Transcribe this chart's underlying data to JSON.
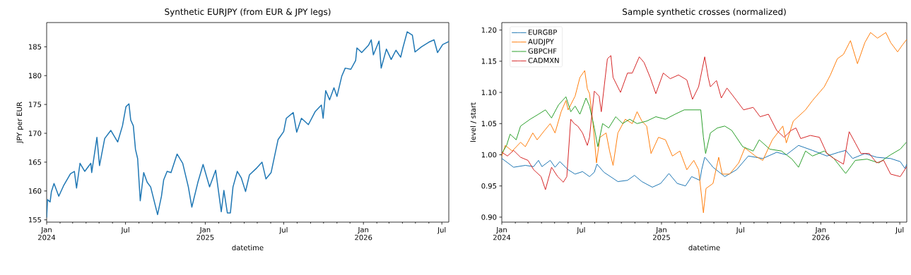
{
  "chart_data": [
    {
      "type": "line",
      "title": "Synthetic EURJPY (from EUR & JPY legs)",
      "xlabel": "datetime",
      "ylabel": "JPY per EUR",
      "xlim": [
        "2024-01-01",
        "2026-07-17"
      ],
      "ylim": [
        154.6,
        189.2
      ],
      "xticks": [
        {
          "value": "2024-01",
          "label": "Jan 2024"
        },
        {
          "value": "2024-02",
          "label": null
        },
        {
          "value": "2024-03",
          "label": null
        },
        {
          "value": "2024-04",
          "label": null
        },
        {
          "value": "2024-05",
          "label": null
        },
        {
          "value": "2024-06",
          "label": null
        },
        {
          "value": "2024-07",
          "label": "Jul"
        },
        {
          "value": "2024-08",
          "label": null
        },
        {
          "value": "2024-09",
          "label": null
        },
        {
          "value": "2024-10",
          "label": null
        },
        {
          "value": "2024-11",
          "label": null
        },
        {
          "value": "2024-12",
          "label": null
        },
        {
          "value": "2025-01",
          "label": "Jan 2025"
        },
        {
          "value": "2025-02",
          "label": null
        },
        {
          "value": "2025-03",
          "label": null
        },
        {
          "value": "2025-04",
          "label": null
        },
        {
          "value": "2025-05",
          "label": null
        },
        {
          "value": "2025-06",
          "label": null
        },
        {
          "value": "2025-07",
          "label": "Jul"
        },
        {
          "value": "2025-08",
          "label": null
        },
        {
          "value": "2025-09",
          "label": null
        },
        {
          "value": "2025-10",
          "label": null
        },
        {
          "value": "2025-11",
          "label": null
        },
        {
          "value": "2025-12",
          "label": null
        },
        {
          "value": "2026-01",
          "label": "Jan 2026"
        },
        {
          "value": "2026-02",
          "label": null
        },
        {
          "value": "2026-03",
          "label": null
        },
        {
          "value": "2026-04",
          "label": null
        },
        {
          "value": "2026-05",
          "label": null
        },
        {
          "value": "2026-06",
          "label": null
        },
        {
          "value": "2026-07",
          "label": "Jul"
        }
      ],
      "yticks": [
        155,
        160,
        165,
        170,
        175,
        180,
        185
      ],
      "series": [
        {
          "color": "#1f77b4",
          "x": [
            "2024-01-01",
            "2024-01-03",
            "2024-01-09",
            "2024-01-12",
            "2024-01-18",
            "2024-01-29",
            "2024-02-09",
            "2024-02-25",
            "2024-03-05",
            "2024-03-10",
            "2024-03-18",
            "2024-03-29",
            "2024-04-12",
            "2024-04-14",
            "2024-04-26",
            "2024-05-02",
            "2024-05-14",
            "2024-05-28",
            "2024-06-13",
            "2024-06-24",
            "2024-07-02",
            "2024-07-09",
            "2024-07-13",
            "2024-07-19",
            "2024-07-24",
            "2024-07-29",
            "2024-08-04",
            "2024-08-12",
            "2024-08-20",
            "2024-08-28",
            "2024-09-13",
            "2024-09-22",
            "2024-09-27",
            "2024-10-05",
            "2024-10-14",
            "2024-10-28",
            "2024-11-10",
            "2024-11-23",
            "2024-12-01",
            "2024-12-15",
            "2024-12-27",
            "2025-01-11",
            "2025-01-25",
            "2025-02-07",
            "2025-02-13",
            "2025-02-21",
            "2025-02-28",
            "2025-03-06",
            "2025-03-16",
            "2025-03-25",
            "2025-04-04",
            "2025-04-13",
            "2025-04-30",
            "2025-05-12",
            "2025-05-21",
            "2025-06-02",
            "2025-06-18",
            "2025-07-01",
            "2025-07-07",
            "2025-07-23",
            "2025-07-31",
            "2025-08-11",
            "2025-08-27",
            "2025-09-12",
            "2025-09-26",
            "2025-09-30",
            "2025-10-06",
            "2025-10-15",
            "2025-10-25",
            "2025-11-01",
            "2025-11-12",
            "2025-11-20",
            "2025-12-03",
            "2025-12-14",
            "2025-12-17",
            "2025-12-28",
            "2026-01-13",
            "2026-01-19",
            "2026-01-24",
            "2026-02-06",
            "2026-02-11",
            "2026-02-23",
            "2026-03-06",
            "2026-03-17",
            "2026-03-28",
            "2026-04-02",
            "2026-04-12",
            "2026-04-24",
            "2026-04-30",
            "2026-05-15",
            "2026-06-01",
            "2026-06-13",
            "2026-06-21",
            "2026-07-03",
            "2026-07-17"
          ],
          "values": [
            155.4,
            158.5,
            158.1,
            159.9,
            161.3,
            159.1,
            160.9,
            163.0,
            163.4,
            160.5,
            164.8,
            163.4,
            164.8,
            163.2,
            169.3,
            164.4,
            169.1,
            170.5,
            168.5,
            171.3,
            174.6,
            175.1,
            172.3,
            171.3,
            167.2,
            165.6,
            158.3,
            163.2,
            161.5,
            160.7,
            155.9,
            159.1,
            161.9,
            163.4,
            163.2,
            166.4,
            164.8,
            160.7,
            157.2,
            161.5,
            164.6,
            160.7,
            163.6,
            156.4,
            160.1,
            156.2,
            156.2,
            160.7,
            163.4,
            162.3,
            159.9,
            162.8,
            164.0,
            165.0,
            162.1,
            163.2,
            168.9,
            170.3,
            172.6,
            173.6,
            170.2,
            172.6,
            171.5,
            173.8,
            174.9,
            172.6,
            177.4,
            175.8,
            177.9,
            176.4,
            179.9,
            181.3,
            181.1,
            182.6,
            184.8,
            184.0,
            185.3,
            186.2,
            183.6,
            186.0,
            181.3,
            184.6,
            182.8,
            184.4,
            183.2,
            184.8,
            187.6,
            187.0,
            184.1,
            185.0,
            185.8,
            186.2,
            184.0,
            185.4,
            185.9
          ]
        }
      ]
    },
    {
      "type": "line",
      "title": "Sample synthetic crosses (normalized)",
      "xlabel": "datetime",
      "ylabel": "level / start",
      "legend": "top left",
      "xlim": [
        "2024-01-01",
        "2026-07-17"
      ],
      "ylim": [
        0.892,
        1.212
      ],
      "xticks": [
        {
          "value": "2024-01",
          "label": "Jan 2024"
        },
        {
          "value": "2024-02",
          "label": null
        },
        {
          "value": "2024-03",
          "label": null
        },
        {
          "value": "2024-04",
          "label": null
        },
        {
          "value": "2024-05",
          "label": null
        },
        {
          "value": "2024-06",
          "label": null
        },
        {
          "value": "2024-07",
          "label": "Jul"
        },
        {
          "value": "2024-08",
          "label": null
        },
        {
          "value": "2024-09",
          "label": null
        },
        {
          "value": "2024-10",
          "label": null
        },
        {
          "value": "2024-11",
          "label": null
        },
        {
          "value": "2024-12",
          "label": null
        },
        {
          "value": "2025-01",
          "label": "Jan 2025"
        },
        {
          "value": "2025-02",
          "label": null
        },
        {
          "value": "2025-03",
          "label": null
        },
        {
          "value": "2025-04",
          "label": null
        },
        {
          "value": "2025-05",
          "label": null
        },
        {
          "value": "2025-06",
          "label": null
        },
        {
          "value": "2025-07",
          "label": "Jul"
        },
        {
          "value": "2025-08",
          "label": null
        },
        {
          "value": "2025-09",
          "label": null
        },
        {
          "value": "2025-10",
          "label": null
        },
        {
          "value": "2025-11",
          "label": null
        },
        {
          "value": "2025-12",
          "label": null
        },
        {
          "value": "2026-01",
          "label": "Jan 2026"
        },
        {
          "value": "2026-02",
          "label": null
        },
        {
          "value": "2026-03",
          "label": null
        },
        {
          "value": "2026-04",
          "label": null
        },
        {
          "value": "2026-05",
          "label": null
        },
        {
          "value": "2026-06",
          "label": null
        },
        {
          "value": "2026-07",
          "label": "Jul"
        }
      ],
      "yticks": [
        {
          "value": 0.9,
          "label": "0.90"
        },
        {
          "value": 0.95,
          "label": "0.95"
        },
        {
          "value": 1.0,
          "label": "1.00"
        },
        {
          "value": 1.05,
          "label": "1.05"
        },
        {
          "value": 1.1,
          "label": "1.10"
        },
        {
          "value": 1.15,
          "label": "1.15"
        },
        {
          "value": 1.2,
          "label": "1.20"
        }
      ],
      "series": [
        {
          "name": "EURGBP",
          "color": "#1f77b4",
          "x": [
            "2024-01-01",
            "2024-01-09",
            "2024-01-28",
            "2024-02-24",
            "2024-03-14",
            "2024-03-25",
            "2024-04-02",
            "2024-04-21",
            "2024-05-02",
            "2024-05-13",
            "2024-06-01",
            "2024-06-17",
            "2024-07-04",
            "2024-07-20",
            "2024-07-31",
            "2024-08-06",
            "2024-08-22",
            "2024-09-23",
            "2024-10-15",
            "2024-10-31",
            "2024-11-17",
            "2024-12-11",
            "2024-12-30",
            "2025-01-18",
            "2025-02-06",
            "2025-02-25",
            "2025-03-11",
            "2025-03-30",
            "2025-04-03",
            "2025-04-10",
            "2025-04-13",
            "2025-04-29",
            "2025-05-26",
            "2025-06-22",
            "2025-07-19",
            "2025-08-21",
            "2025-09-22",
            "2025-10-14",
            "2025-11-11",
            "2025-12-13",
            "2026-01-15",
            "2026-02-11",
            "2026-02-27",
            "2026-03-15",
            "2026-04-12",
            "2026-05-09",
            "2026-06-10",
            "2026-07-02",
            "2026-07-13",
            "2026-07-17"
          ],
          "values": [
            0.994,
            0.99,
            0.98,
            0.983,
            0.981,
            0.991,
            0.981,
            0.991,
            0.98,
            0.989,
            0.976,
            0.969,
            0.973,
            0.965,
            0.972,
            0.985,
            0.972,
            0.957,
            0.959,
            0.967,
            0.957,
            0.948,
            0.954,
            0.97,
            0.954,
            0.95,
            0.965,
            0.959,
            0.976,
            0.996,
            0.994,
            0.98,
            0.965,
            0.976,
            0.998,
            0.994,
            1.004,
            1.0,
            1.015,
            1.007,
            0.998,
            1.004,
            1.007,
            0.994,
            1.002,
            0.996,
            0.994,
            0.989,
            0.978,
            0.985
          ]
        },
        {
          "name": "AUDJPY",
          "color": "#ff7f0e",
          "x": [
            "2024-01-01",
            "2024-01-09",
            "2024-01-25",
            "2024-02-13",
            "2024-02-24",
            "2024-03-12",
            "2024-03-22",
            "2024-04-08",
            "2024-04-21",
            "2024-05-02",
            "2024-05-16",
            "2024-05-27",
            "2024-06-01",
            "2024-06-17",
            "2024-06-28",
            "2024-07-09",
            "2024-07-15",
            "2024-07-20",
            "2024-07-28",
            "2024-08-05",
            "2024-08-13",
            "2024-08-27",
            "2024-09-04",
            "2024-09-12",
            "2024-09-23",
            "2024-10-10",
            "2024-10-26",
            "2024-11-06",
            "2024-11-17",
            "2024-11-28",
            "2024-12-08",
            "2024-12-25",
            "2025-01-10",
            "2025-01-26",
            "2025-02-12",
            "2025-02-28",
            "2025-03-16",
            "2025-03-27",
            "2025-04-07",
            "2025-04-13",
            "2025-04-29",
            "2025-05-12",
            "2025-05-20",
            "2025-06-06",
            "2025-06-27",
            "2025-07-11",
            "2025-08-04",
            "2025-08-21",
            "2025-09-12",
            "2025-10-06",
            "2025-10-14",
            "2025-10-30",
            "2025-11-27",
            "2025-12-13",
            "2026-01-09",
            "2026-01-23",
            "2026-02-08",
            "2026-02-22",
            "2026-03-10",
            "2026-03-26",
            "2026-04-12",
            "2026-04-25",
            "2026-05-11",
            "2026-05-30",
            "2026-06-10",
            "2026-06-26",
            "2026-07-07",
            "2026-07-17"
          ],
          "values": [
            0.998,
            1.015,
            1.006,
            1.02,
            1.013,
            1.035,
            1.024,
            1.039,
            1.05,
            1.035,
            1.069,
            1.087,
            1.072,
            1.094,
            1.124,
            1.135,
            1.106,
            1.098,
            1.05,
            0.987,
            1.028,
            1.035,
            1.006,
            0.983,
            1.035,
            1.057,
            1.05,
            1.069,
            1.054,
            1.046,
            1.002,
            1.028,
            1.024,
            0.998,
            1.006,
            0.976,
            0.991,
            0.976,
            0.907,
            0.946,
            0.954,
            0.996,
            0.969,
            0.969,
            0.987,
            1.011,
            0.998,
            0.991,
            1.024,
            1.046,
            1.019,
            1.054,
            1.072,
            1.087,
            1.109,
            1.128,
            1.154,
            1.161,
            1.183,
            1.146,
            1.18,
            1.196,
            1.187,
            1.196,
            1.18,
            1.165,
            1.176,
            1.185
          ]
        },
        {
          "name": "GBPCHF",
          "color": "#2ca02c",
          "x": [
            "2024-01-01",
            "2024-01-12",
            "2024-01-20",
            "2024-02-03",
            "2024-02-13",
            "2024-03-06",
            "2024-03-25",
            "2024-04-10",
            "2024-04-24",
            "2024-05-10",
            "2024-05-27",
            "2024-06-07",
            "2024-06-17",
            "2024-06-28",
            "2024-07-12",
            "2024-07-20",
            "2024-07-31",
            "2024-08-08",
            "2024-08-19",
            "2024-09-02",
            "2024-09-18",
            "2024-10-04",
            "2024-10-20",
            "2024-11-06",
            "2024-11-28",
            "2024-12-19",
            "2025-01-10",
            "2025-02-01",
            "2025-02-22",
            "2025-03-16",
            "2025-04-01",
            "2025-04-07",
            "2025-04-12",
            "2025-04-23",
            "2025-05-09",
            "2025-05-26",
            "2025-06-11",
            "2025-07-06",
            "2025-07-30",
            "2025-08-13",
            "2025-09-06",
            "2025-10-03",
            "2025-10-27",
            "2025-11-11",
            "2025-11-27",
            "2025-12-13",
            "2026-01-09",
            "2026-01-31",
            "2026-02-27",
            "2026-03-21",
            "2026-04-17",
            "2026-05-14",
            "2026-06-10",
            "2026-07-02",
            "2026-07-16"
          ],
          "values": [
            1.002,
            1.015,
            1.033,
            1.024,
            1.046,
            1.057,
            1.065,
            1.072,
            1.059,
            1.08,
            1.093,
            1.069,
            1.078,
            1.065,
            1.091,
            1.078,
            1.043,
            1.013,
            1.05,
            1.043,
            1.061,
            1.05,
            1.057,
            1.05,
            1.054,
            1.061,
            1.057,
            1.065,
            1.072,
            1.072,
            1.072,
            1.028,
            1.002,
            1.035,
            1.043,
            1.046,
            1.039,
            1.013,
            1.006,
            1.024,
            1.009,
            1.006,
            0.993,
            0.98,
            1.006,
            0.998,
            1.006,
            0.994,
            0.97,
            0.991,
            0.993,
            0.987,
            1.0,
            1.009,
            1.02
          ]
        },
        {
          "name": "CADMXN",
          "color": "#d62728",
          "x": [
            "2024-01-01",
            "2024-01-14",
            "2024-01-28",
            "2024-02-13",
            "2024-03-01",
            "2024-03-14",
            "2024-03-31",
            "2024-04-10",
            "2024-04-24",
            "2024-05-08",
            "2024-05-21",
            "2024-05-29",
            "2024-06-07",
            "2024-06-15",
            "2024-06-23",
            "2024-07-04",
            "2024-07-15",
            "2024-07-20",
            "2024-07-31",
            "2024-08-11",
            "2024-08-16",
            "2024-08-25",
            "2024-08-30",
            "2024-09-07",
            "2024-09-12",
            "2024-09-29",
            "2024-10-15",
            "2024-10-26",
            "2024-11-11",
            "2024-11-22",
            "2024-12-06",
            "2024-12-19",
            "2025-01-05",
            "2025-01-21",
            "2025-02-09",
            "2025-02-28",
            "2025-03-13",
            "2025-03-27",
            "2025-04-10",
            "2025-04-18",
            "2025-04-23",
            "2025-05-07",
            "2025-05-18",
            "2025-05-31",
            "2025-06-22",
            "2025-07-08",
            "2025-07-30",
            "2025-08-15",
            "2025-09-03",
            "2025-09-22",
            "2025-10-09",
            "2025-10-25",
            "2025-11-05",
            "2025-11-16",
            "2025-12-08",
            "2025-12-29",
            "2026-01-15",
            "2026-01-31",
            "2026-02-22",
            "2026-03-07",
            "2026-03-21",
            "2026-04-03",
            "2026-04-22",
            "2026-05-09",
            "2026-05-25",
            "2026-06-10",
            "2026-07-02",
            "2026-07-17"
          ],
          "values": [
            1.004,
            0.998,
            1.007,
            0.996,
            0.991,
            0.976,
            0.965,
            0.944,
            0.98,
            0.965,
            0.956,
            0.965,
            1.057,
            1.05,
            1.046,
            1.035,
            1.015,
            1.028,
            1.102,
            1.094,
            1.069,
            1.124,
            1.154,
            1.159,
            1.124,
            1.1,
            1.131,
            1.131,
            1.157,
            1.148,
            1.124,
            1.098,
            1.131,
            1.122,
            1.128,
            1.12,
            1.089,
            1.109,
            1.157,
            1.124,
            1.109,
            1.119,
            1.091,
            1.107,
            1.087,
            1.072,
            1.076,
            1.061,
            1.065,
            1.039,
            1.028,
            1.039,
            1.043,
            1.026,
            1.031,
            1.028,
            1.002,
            0.994,
            0.985,
            1.037,
            1.019,
            1.002,
            1.002,
            0.987,
            0.991,
            0.969,
            0.965,
            0.981
          ]
        }
      ]
    }
  ]
}
